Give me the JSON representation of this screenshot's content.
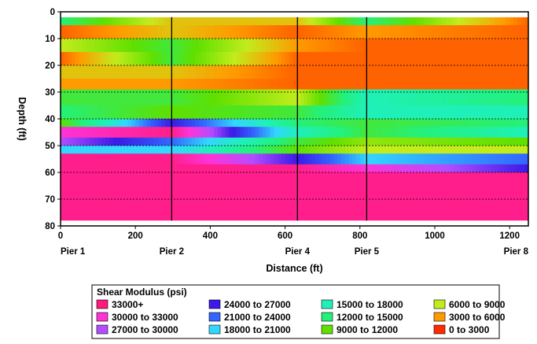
{
  "chart_data": {
    "type": "heatmap",
    "title": "",
    "xlabel": "Distance (ft)",
    "ylabel": "Depth (ft)",
    "xlim": [
      0,
      1250
    ],
    "ylim": [
      80,
      0
    ],
    "x_ticks": [
      0,
      200,
      400,
      600,
      800,
      1000,
      1200
    ],
    "y_ticks": [
      0,
      10,
      20,
      30,
      40,
      50,
      60,
      70,
      80
    ],
    "piers": [
      {
        "name": "Pier 1",
        "x": 0
      },
      {
        "name": "Pier 2",
        "x": 297
      },
      {
        "name": "Pier 4",
        "x": 633
      },
      {
        "name": "Pier 5",
        "x": 818
      },
      {
        "name": "Pier 8",
        "x": 1250
      }
    ],
    "grid": "horizontal dotted",
    "data_depth_range": [
      2,
      78
    ],
    "profile_nodes_x": [
      0,
      297,
      633,
      818,
      1250
    ],
    "layers": [
      {
        "top": 2,
        "bottom": 5,
        "values": [
          13500,
          6000,
          6000,
          13500,
          3000
        ]
      },
      {
        "top": 5,
        "bottom": 10,
        "values": [
          3000,
          6000,
          3000,
          4500,
          3000
        ]
      },
      {
        "top": 10,
        "bottom": 15,
        "values": [
          7500,
          12000,
          4500,
          3000,
          3000
        ]
      },
      {
        "top": 15,
        "bottom": 20,
        "values": [
          3000,
          12000,
          3000,
          3000,
          3000
        ]
      },
      {
        "top": 20,
        "bottom": 25,
        "values": [
          6000,
          6000,
          3000,
          3000,
          3000
        ]
      },
      {
        "top": 25,
        "bottom": 29,
        "values": [
          4500,
          4500,
          3000,
          3000,
          3000
        ]
      },
      {
        "top": 29,
        "bottom": 35,
        "values": [
          12000,
          12000,
          7500,
          16500,
          13500
        ]
      },
      {
        "top": 35,
        "bottom": 40,
        "values": [
          13500,
          10500,
          12000,
          16500,
          16500
        ]
      },
      {
        "top": 40,
        "bottom": 43,
        "values": [
          10500,
          25500,
          13500,
          12000,
          13500
        ]
      },
      {
        "top": 43,
        "bottom": 47,
        "values": [
          31500,
          34000,
          16500,
          12000,
          16500
        ]
      },
      {
        "top": 47,
        "bottom": 50,
        "values": [
          28500,
          22500,
          12000,
          9000,
          10500
        ]
      },
      {
        "top": 50,
        "bottom": 53,
        "values": [
          19500,
          19500,
          10500,
          7500,
          7500
        ]
      },
      {
        "top": 53,
        "bottom": 57,
        "values": [
          34000,
          34000,
          25500,
          19500,
          22500
        ]
      },
      {
        "top": 57,
        "bottom": 60,
        "values": [
          34000,
          34000,
          34000,
          31500,
          25500
        ]
      },
      {
        "top": 60,
        "bottom": 78,
        "values": [
          34000,
          34000,
          34000,
          34000,
          34000
        ]
      }
    ],
    "legend": {
      "title": "Shear Modulus (psi)",
      "placement": "bottom-center",
      "entries": [
        {
          "label": "33000+",
          "color": "#ff1a7c"
        },
        {
          "label": "30000 to 33000",
          "color": "#ff33d6"
        },
        {
          "label": "27000 to 30000",
          "color": "#b44dff"
        },
        {
          "label": "24000 to 27000",
          "color": "#3a1ae6"
        },
        {
          "label": "21000 to 24000",
          "color": "#3366ff"
        },
        {
          "label": "18000 to 21000",
          "color": "#33d6ff"
        },
        {
          "label": "15000 to 18000",
          "color": "#1ff0b8"
        },
        {
          "label": "12000 to 15000",
          "color": "#24f07a"
        },
        {
          "label": "9000 to 12000",
          "color": "#5fe000"
        },
        {
          "label": "6000 to 9000",
          "color": "#c2ec1c"
        },
        {
          "label": "3000 to 6000",
          "color": "#ff9a00"
        },
        {
          "label": "0 to 3000",
          "color": "#ff2a00"
        }
      ]
    }
  }
}
